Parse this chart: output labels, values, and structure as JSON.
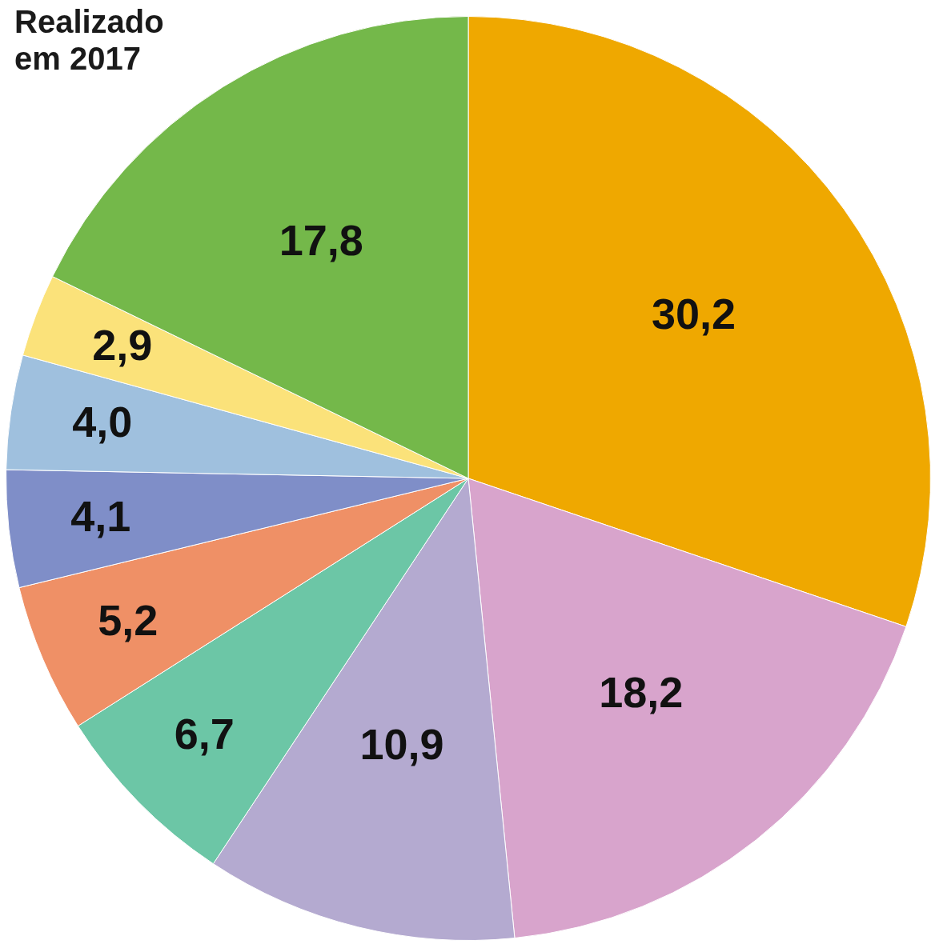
{
  "chart_data": {
    "type": "pie",
    "title": "Realizado\nem 2017",
    "categories": [
      null,
      null,
      null,
      null,
      null,
      null,
      null,
      null,
      null
    ],
    "values": [
      30.2,
      18.2,
      10.9,
      6.7,
      5.2,
      4.1,
      4.0,
      2.9,
      17.8
    ],
    "value_labels": [
      "30,2",
      "18,2",
      "10,9",
      "6,7",
      "5,2",
      "4,1",
      "4,0",
      "2,9",
      "17,8"
    ],
    "colors": [
      "#efa800",
      "#d8a4cc",
      "#b4aad0",
      "#6cc6a6",
      "#ef9066",
      "#7f8ec8",
      "#9fc0de",
      "#fbe27a",
      "#74b84a"
    ],
    "legend": false
  }
}
